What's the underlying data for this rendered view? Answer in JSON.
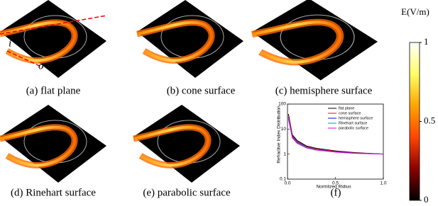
{
  "panels": [
    {
      "caption": "(a) flat plane",
      "labels": [
        "i",
        "o"
      ]
    },
    {
      "caption": "(b) cone surface"
    },
    {
      "caption": "(c) hemisphere surface"
    },
    {
      "caption": "(d) Rinehart surface"
    },
    {
      "caption": "(e) parabolic surface"
    }
  ],
  "colorbar": {
    "label": "E(V/m)",
    "lim": [
      0,
      1
    ],
    "ticks": [
      0,
      0.5,
      1
    ],
    "colors": [
      "#000000",
      "#8b0000",
      "#ff4500",
      "#ffa500",
      "#ffff66",
      "#ffffff"
    ]
  },
  "chart_data": {
    "type": "line",
    "caption": "(f)",
    "xlabel": "Normlized Ridius",
    "ylabel": "Refractive Index Distribution",
    "x": [
      0.01,
      0.05,
      0.1,
      0.2,
      0.3,
      0.5,
      0.7,
      1.0
    ],
    "xlim": [
      0,
      1
    ],
    "xticks": [
      {
        "value": 0,
        "label": "0.0"
      },
      0.5,
      {
        "value": 1,
        "label": "1.0"
      }
    ],
    "ylim": [
      0.1,
      100
    ],
    "yticks": [
      0.1,
      1,
      10,
      100
    ],
    "ylog": true,
    "legend": "upper right",
    "series": [
      {
        "name": "flat plane",
        "color": "#000000",
        "values": [
          40,
          6,
          3.5,
          2.1,
          1.7,
          1.35,
          1.15,
          1
        ]
      },
      {
        "name": "cone surface",
        "color": "#ff0000",
        "values": [
          35,
          5.5,
          3.2,
          2,
          1.6,
          1.3,
          1.12,
          1
        ]
      },
      {
        "name": "hemisphere surface",
        "color": "#0000ff",
        "values": [
          30,
          5,
          3,
          1.9,
          1.5,
          1.25,
          1.1,
          1
        ]
      },
      {
        "name": "Rinehart surface",
        "color": "#00a0a0",
        "values": [
          28,
          4.8,
          2.9,
          1.85,
          1.5,
          1.22,
          1.08,
          1
        ]
      },
      {
        "name": "parabolic surface",
        "color": "#e000e0",
        "values": [
          25,
          4.5,
          2.7,
          1.75,
          1.45,
          1.2,
          1.07,
          1
        ]
      }
    ]
  }
}
